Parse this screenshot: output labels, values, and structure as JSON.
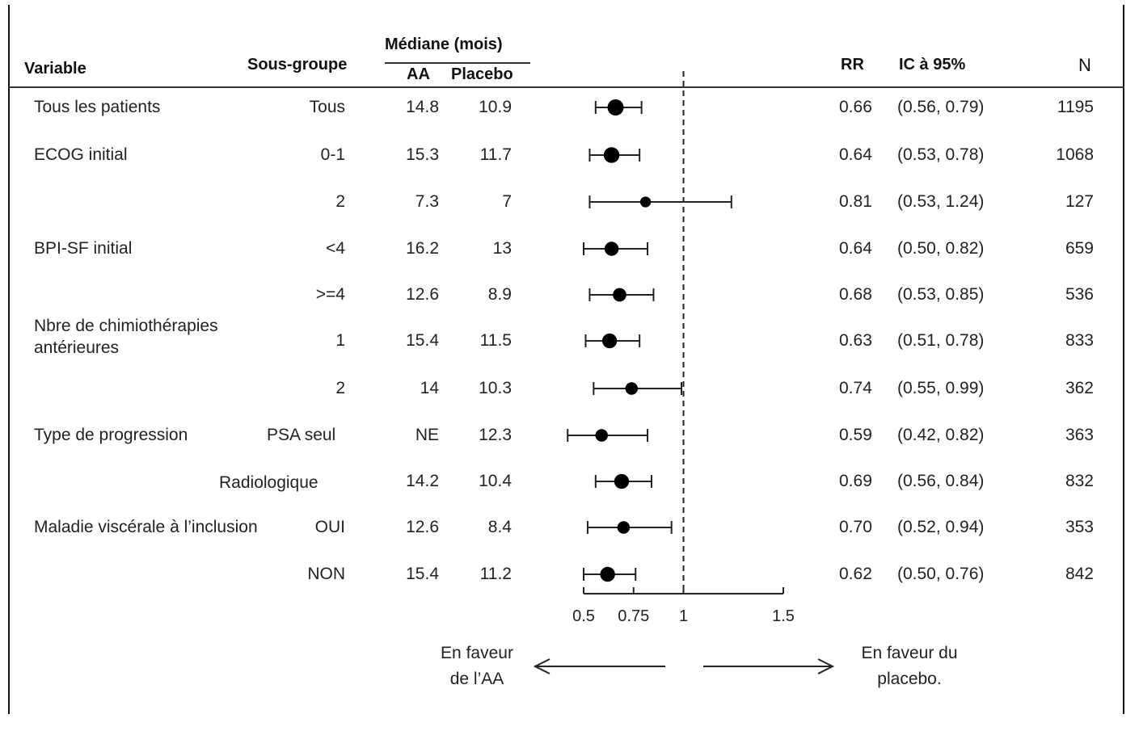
{
  "header": {
    "variable": "Variable",
    "subgroup": "Sous-groupe",
    "median": "Médiane (mois)",
    "aa": "AA",
    "placebo": "Placebo",
    "rr": "RR",
    "ci": "IC à 95%",
    "n": "N"
  },
  "footer": {
    "favour_aa_line1": "En faveur",
    "favour_aa_line2": "de l’AA",
    "favour_placebo_line1": "En faveur du",
    "favour_placebo_line2": "placebo."
  },
  "chart_data": {
    "type": "forest",
    "reference_line": 1,
    "x_scale": "linear",
    "xlim": [
      0.5,
      1.5
    ],
    "x_ticks": [
      0.5,
      0.75,
      1,
      1.5
    ],
    "x_tick_labels": [
      "0.5",
      "0.75",
      "1",
      "1.5"
    ],
    "rows": [
      {
        "variable": "Tous les patients",
        "subgroup": "Tous",
        "aa": "14.8",
        "placebo": "10.9",
        "rr": 0.66,
        "rr_label": "0.66",
        "ci_low": 0.56,
        "ci_high": 0.79,
        "ci_label": "(0.56,  0.79)",
        "n": "1195"
      },
      {
        "variable": "ECOG  initial",
        "subgroup": "0-1",
        "aa": "15.3",
        "placebo": "11.7",
        "rr": 0.64,
        "rr_label": "0.64",
        "ci_low": 0.53,
        "ci_high": 0.78,
        "ci_label": "(0.53,  0.78)",
        "n": "1068"
      },
      {
        "variable": "",
        "subgroup": "2",
        "aa": "7.3",
        "placebo": "7",
        "rr": 0.81,
        "rr_label": "0.81",
        "ci_low": 0.53,
        "ci_high": 1.24,
        "ci_label": "(0.53,  1.24)",
        "n": "127"
      },
      {
        "variable": "BPI-SF initial",
        "subgroup": "<4",
        "aa": "16.2",
        "placebo": "13",
        "rr": 0.64,
        "rr_label": "0.64",
        "ci_low": 0.5,
        "ci_high": 0.82,
        "ci_label": "(0.50,  0.82)",
        "n": "659"
      },
      {
        "variable": "",
        "subgroup": ">=4",
        "aa": "12.6",
        "placebo": "8.9",
        "rr": 0.68,
        "rr_label": "0.68",
        "ci_low": 0.53,
        "ci_high": 0.85,
        "ci_label": "(0.53,  0.85)",
        "n": "536"
      },
      {
        "variable": "Nbre de chimiothérapies",
        "variable_line2": "antérieures",
        "subgroup": "1",
        "aa": "15.4",
        "placebo": "11.5",
        "rr": 0.63,
        "rr_label": "0.63",
        "ci_low": 0.51,
        "ci_high": 0.78,
        "ci_label": "(0.51,  0.78)",
        "n": "833"
      },
      {
        "variable": "",
        "subgroup": "2",
        "aa": "14",
        "placebo": "10.3",
        "rr": 0.74,
        "rr_label": "0.74",
        "ci_low": 0.55,
        "ci_high": 0.99,
        "ci_label": "(0.55,  0.99)",
        "n": "362"
      },
      {
        "variable": "Type de progression",
        "subgroup": "PSA seul",
        "aa": "NE",
        "placebo": "12.3",
        "rr": 0.59,
        "rr_label": "0.59",
        "ci_low": 0.42,
        "ci_high": 0.82,
        "ci_label": "(0.42,  0.82)",
        "n": "363"
      },
      {
        "variable": "",
        "subgroup": "Radiologique",
        "aa": "14.2",
        "placebo": "10.4",
        "rr": 0.69,
        "rr_label": "0.69",
        "ci_low": 0.56,
        "ci_high": 0.84,
        "ci_label": "(0.56,  0.84)",
        "n": "832"
      },
      {
        "variable": "Maladie viscérale à l’inclusion",
        "subgroup": "OUI",
        "aa": "12.6",
        "placebo": "8.4",
        "rr": 0.7,
        "rr_label": "0.70",
        "ci_low": 0.52,
        "ci_high": 0.94,
        "ci_label": "(0.52,  0.94)",
        "n": "353"
      },
      {
        "variable": "",
        "subgroup": "NON",
        "aa": "15.4",
        "placebo": "11.2",
        "rr": 0.62,
        "rr_label": "0.62",
        "ci_low": 0.5,
        "ci_high": 0.76,
        "ci_label": "(0.50,  0.76)",
        "n": "842"
      }
    ],
    "marker_sizes": [
      1195,
      1068,
      127,
      659,
      536,
      833,
      362,
      363,
      832,
      353,
      842
    ]
  }
}
